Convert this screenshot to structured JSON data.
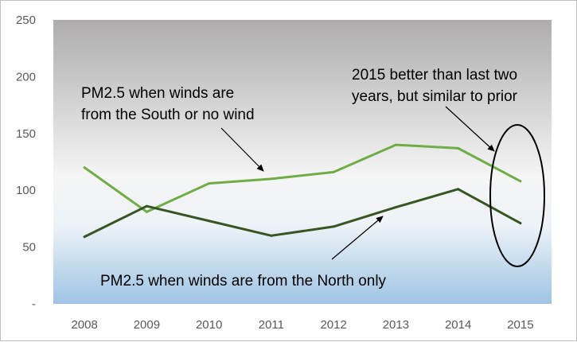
{
  "chart_data": {
    "type": "line",
    "title": "",
    "xlabel": "",
    "ylabel": "",
    "categories": [
      "2008",
      "2009",
      "2010",
      "2011",
      "2012",
      "2013",
      "2014",
      "2015"
    ],
    "ylim": [
      0,
      250
    ],
    "yticks": [
      "-",
      "50",
      "100",
      "150",
      "200",
      "250"
    ],
    "ytick_values": [
      0,
      50,
      100,
      150,
      200,
      250
    ],
    "grid": false,
    "legend": "none",
    "plot_background": "gradient: gray (#aeacac) at top to white to light blue (#9fc4e4) at bottom",
    "series": [
      {
        "label_ref": "annotations.south",
        "color": "#70ad47",
        "values": [
          120,
          81,
          106,
          110,
          116,
          140,
          137,
          108
        ]
      },
      {
        "label_ref": "annotations.north",
        "color": "#375623",
        "values": [
          59,
          86,
          73,
          60,
          68,
          85,
          101,
          71
        ]
      }
    ],
    "annotations": {
      "south": [
        "PM2.5 when winds are",
        "from the South or no wind"
      ],
      "north": [
        "PM2.5 when winds are from the North only"
      ],
      "note": [
        "2015 better than last two",
        "years, but similar to prior"
      ]
    },
    "highlight": {
      "shape": "ellipse",
      "category": "2015"
    }
  }
}
